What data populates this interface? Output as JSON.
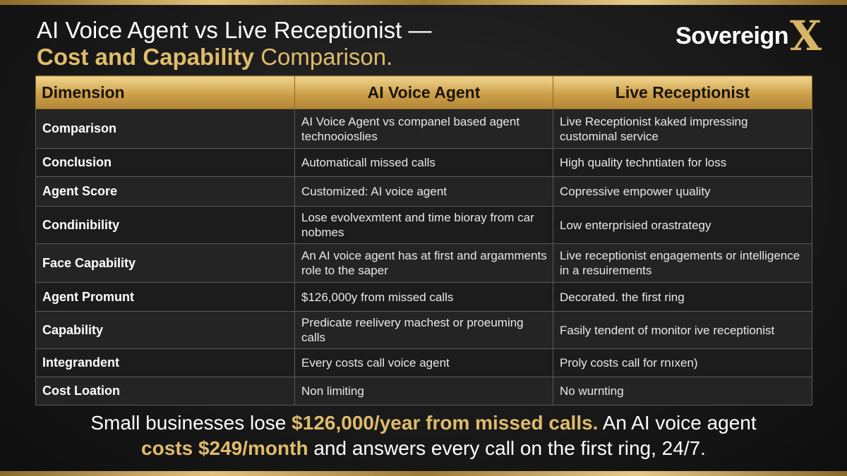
{
  "header": {
    "title_line1": "AI Voice Agent vs Live Receptionist —",
    "title_highlight": "Cost and Capability",
    "title_rest": "Comparison.",
    "logo_text": "Sovereign",
    "logo_mark": "X"
  },
  "table": {
    "columns": [
      "Dimension",
      "AI Voice Agent",
      "Live Receptionist"
    ],
    "rows": [
      [
        "Comparison",
        "AI Voice Agent vs companel based agent technooioslies",
        "Live Receptionist kaked impressing custominal service"
      ],
      [
        "Conclusion",
        "Automaticall missed calls",
        "High quality techntiaten for loss"
      ],
      [
        "Agent Score",
        "Customized: AI voice agent",
        "Copressive empower ɥuality"
      ],
      [
        "Condinibility",
        "Lose evolve⁠xmtent and time bioray from car nobmes",
        "Low enterprisied orastrategy"
      ],
      [
        "Face Capability",
        "An AI voice agent has at first and argamments role to the saper",
        "Live receptionist engagements or intelligence in a resuirements"
      ],
      [
        "Agent Promunt",
        "$126,000y from missed calls",
        "Decorated. the first ring"
      ],
      [
        "Capability",
        "Predicate reelivery machest or proeuming calls",
        "Fasily tendent of monitor ive receptionist"
      ],
      [
        "Integrandent",
        "Every costs call voice agent",
        "Proly costs call for rnıxen)"
      ],
      [
        "Cost Loation",
        "Non limiting",
        "No wurnting"
      ]
    ]
  },
  "footer": {
    "line1": [
      "Small businesses lose",
      "$126,000/year from missed calls.",
      "An AI voice agent"
    ],
    "line2": [
      "costs $249/month",
      "and answers every call on the first ring, 24/7."
    ]
  }
}
